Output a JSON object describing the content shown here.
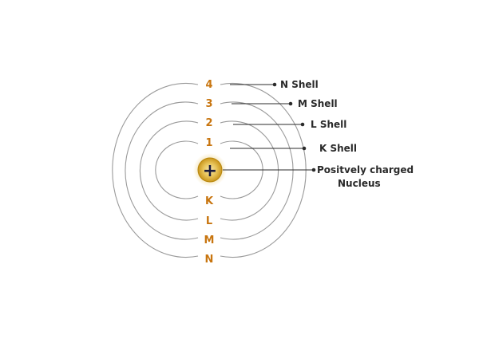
{
  "diagram": {
    "shells": [
      {
        "number": "4",
        "letter": "N",
        "label": "N Shell"
      },
      {
        "number": "3",
        "letter": "M",
        "label": "M Shell"
      },
      {
        "number": "2",
        "letter": "L",
        "label": "L Shell"
      },
      {
        "number": "1",
        "letter": "K",
        "label": "K Shell"
      }
    ],
    "nucleus": {
      "symbol": "+",
      "label_line1": "Positvely charged",
      "label_line2": "Nucleus"
    },
    "colors": {
      "number_text": "#c8750f",
      "shell_stroke": "#9a9a9a",
      "nucleus_outer": "#f0d9a0",
      "nucleus_core": "#d4a52a"
    }
  }
}
